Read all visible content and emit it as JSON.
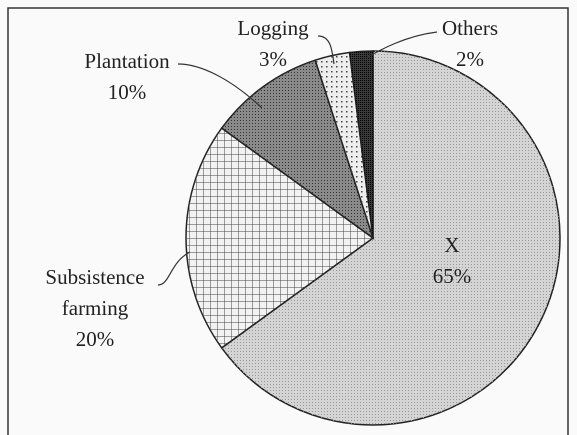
{
  "chart_data": {
    "type": "pie",
    "categories": [
      "X",
      "Subsistence farming",
      "Plantation",
      "Logging",
      "Others"
    ],
    "values": [
      65,
      20,
      10,
      3,
      2
    ],
    "value_labels": [
      "65%",
      "20%",
      "10%",
      "3%",
      "2%"
    ],
    "colors": [
      "#d4d4d4",
      "#f2f2f2",
      "#8a8a8a",
      "#eeeeee",
      "#3a3a3a"
    ]
  }
}
